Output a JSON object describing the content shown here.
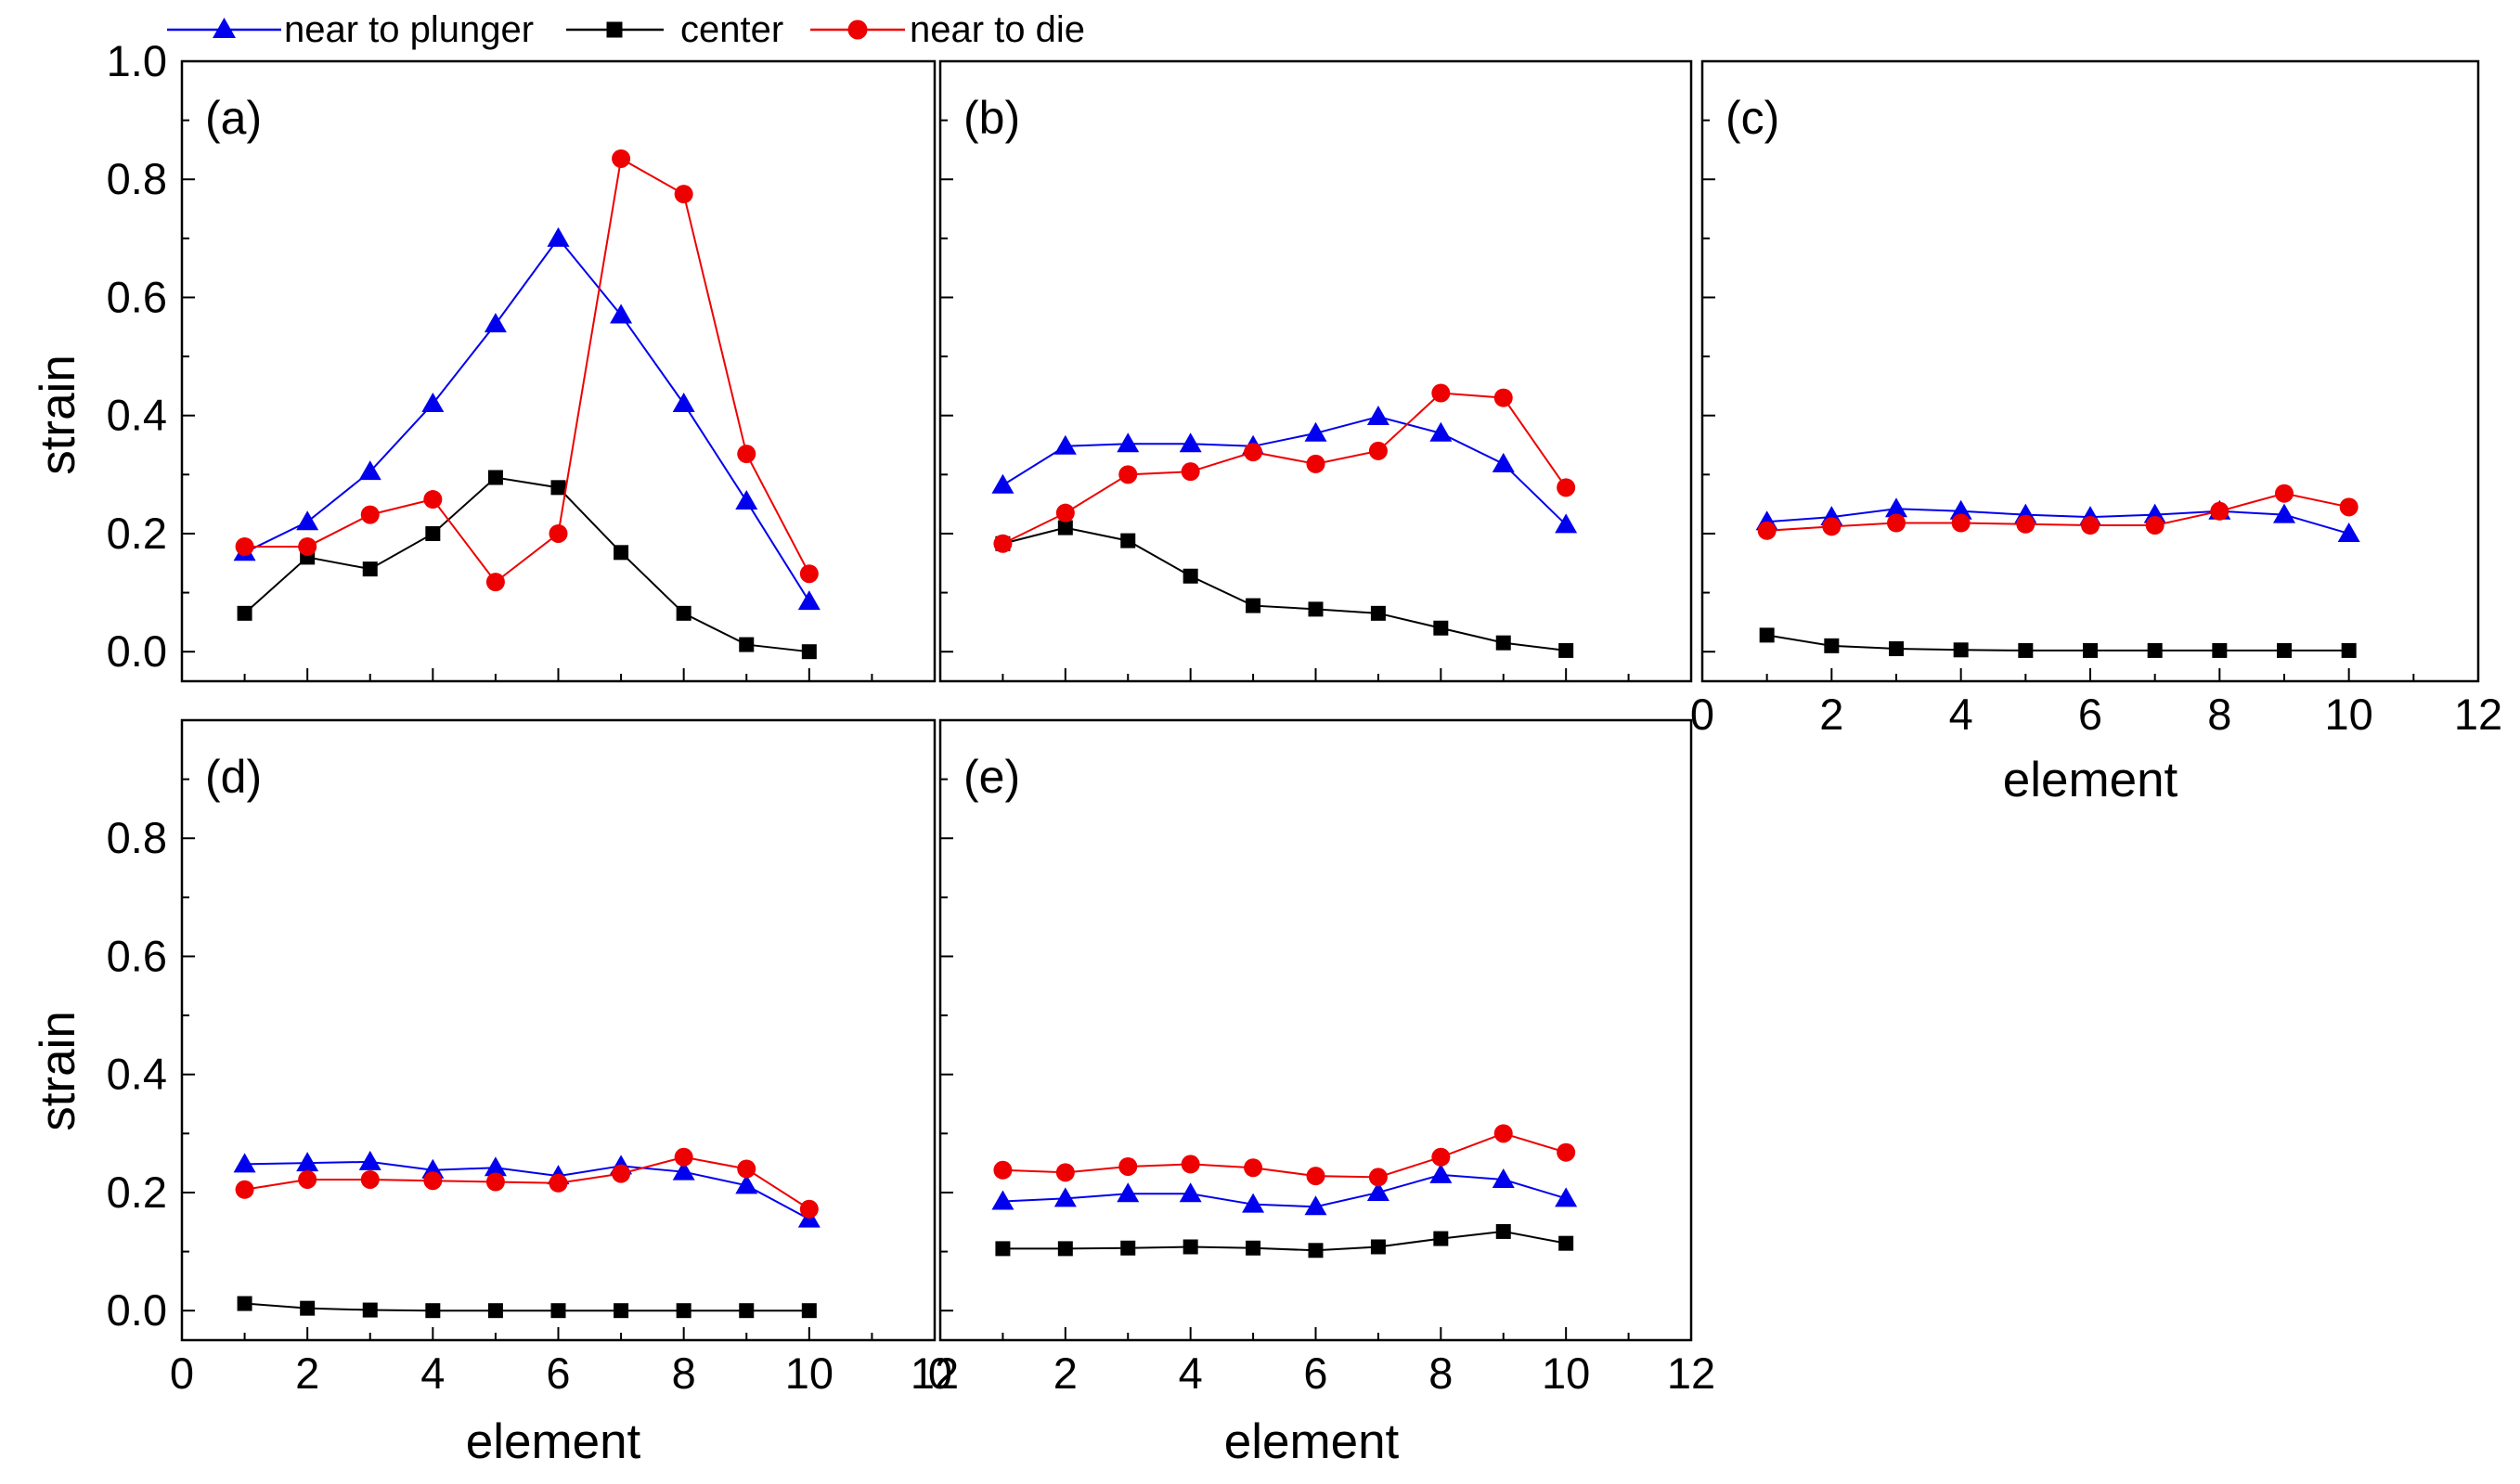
{
  "chart_data": {
    "type": "line",
    "legend": {
      "placement": "top-left",
      "entries": [
        {
          "key": "plunger",
          "label": "near to plunger"
        },
        {
          "key": "center",
          "label": "center"
        },
        {
          "key": "die",
          "label": "near to die"
        }
      ]
    },
    "series_styles": {
      "plunger": {
        "color": "#0000ee",
        "marker": "triangle"
      },
      "center": {
        "color": "#000000",
        "marker": "square"
      },
      "die": {
        "color": "#ee0000",
        "marker": "circle"
      }
    },
    "xlim": [
      0,
      12
    ],
    "ylim": [
      -0.05,
      1.0
    ],
    "x_ticks": [
      0,
      2,
      4,
      6,
      8,
      10,
      12
    ],
    "y_ticks_full": [
      "0.0",
      "0.2",
      "0.4",
      "0.6",
      "0.8",
      "1.0"
    ],
    "y_ticks_lower": [
      "0.0",
      "0.2",
      "0.4",
      "0.6",
      "0.8"
    ],
    "xlabel": "element",
    "ylabel": "strain",
    "panels": [
      {
        "label": "(a)",
        "x": [
          1,
          2,
          3,
          4,
          5,
          6,
          7,
          8,
          9,
          10
        ],
        "series": {
          "plunger": [
            0.168,
            0.22,
            0.305,
            0.42,
            0.555,
            0.7,
            0.57,
            0.42,
            0.255,
            0.085
          ],
          "center": [
            0.065,
            0.16,
            0.14,
            0.2,
            0.295,
            0.278,
            0.168,
            0.065,
            0.012,
            0.0
          ],
          "die": [
            0.178,
            0.178,
            0.232,
            0.258,
            0.118,
            0.2,
            0.835,
            0.775,
            0.335,
            0.132
          ]
        }
      },
      {
        "label": "(b)",
        "x": [
          1,
          2,
          3,
          4,
          5,
          6,
          7,
          8,
          9,
          10
        ],
        "series": {
          "plunger": [
            0.282,
            0.348,
            0.352,
            0.352,
            0.348,
            0.37,
            0.398,
            0.37,
            0.318,
            0.215
          ],
          "center": [
            0.183,
            0.21,
            0.188,
            0.128,
            0.078,
            0.072,
            0.065,
            0.04,
            0.015,
            0.002
          ],
          "die": [
            0.183,
            0.235,
            0.3,
            0.305,
            0.338,
            0.318,
            0.34,
            0.438,
            0.43,
            0.278
          ]
        }
      },
      {
        "label": "(c)",
        "x": [
          1,
          2,
          3,
          4,
          5,
          6,
          7,
          8,
          9,
          10
        ],
        "series": {
          "plunger": [
            0.22,
            0.228,
            0.242,
            0.238,
            0.232,
            0.228,
            0.232,
            0.238,
            0.232,
            0.2
          ],
          "center": [
            0.028,
            0.01,
            0.005,
            0.003,
            0.002,
            0.002,
            0.002,
            0.002,
            0.002,
            0.002
          ],
          "die": [
            0.205,
            0.212,
            0.218,
            0.218,
            0.216,
            0.214,
            0.214,
            0.238,
            0.268,
            0.245
          ]
        }
      },
      {
        "label": "(d)",
        "x": [
          1,
          2,
          3,
          4,
          5,
          6,
          7,
          8,
          9,
          10
        ],
        "series": {
          "plunger": [
            0.248,
            0.25,
            0.252,
            0.238,
            0.242,
            0.228,
            0.245,
            0.235,
            0.212,
            0.155
          ],
          "center": [
            0.012,
            0.004,
            0.001,
            0.0,
            0.0,
            0.0,
            0.0,
            0.0,
            0.0,
            0.0
          ],
          "die": [
            0.205,
            0.222,
            0.222,
            0.22,
            0.218,
            0.216,
            0.232,
            0.26,
            0.24,
            0.172
          ]
        }
      },
      {
        "label": "(e)",
        "x": [
          1,
          2,
          3,
          4,
          5,
          6,
          7,
          8,
          9,
          10
        ],
        "series": {
          "plunger": [
            0.185,
            0.19,
            0.198,
            0.198,
            0.18,
            0.176,
            0.2,
            0.23,
            0.222,
            0.19
          ],
          "center": [
            0.105,
            0.105,
            0.106,
            0.108,
            0.106,
            0.102,
            0.108,
            0.122,
            0.134,
            0.114
          ],
          "die": [
            0.238,
            0.234,
            0.244,
            0.248,
            0.242,
            0.228,
            0.226,
            0.26,
            0.3,
            0.268
          ]
        }
      }
    ]
  }
}
